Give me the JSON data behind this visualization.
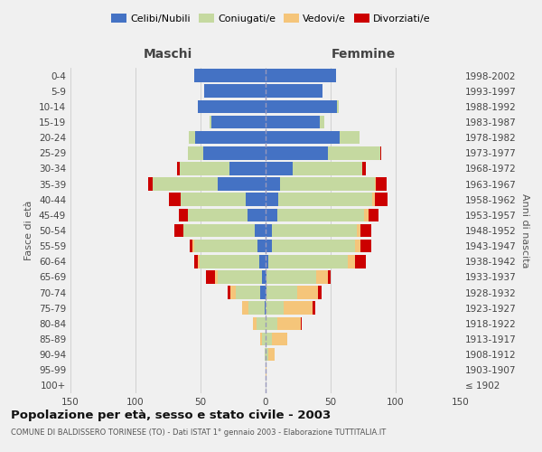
{
  "age_groups": [
    "100+",
    "95-99",
    "90-94",
    "85-89",
    "80-84",
    "75-79",
    "70-74",
    "65-69",
    "60-64",
    "55-59",
    "50-54",
    "45-49",
    "40-44",
    "35-39",
    "30-34",
    "25-29",
    "20-24",
    "15-19",
    "10-14",
    "5-9",
    "0-4"
  ],
  "birth_years": [
    "≤ 1902",
    "1903-1907",
    "1908-1912",
    "1913-1917",
    "1918-1922",
    "1923-1927",
    "1928-1932",
    "1933-1937",
    "1938-1942",
    "1943-1947",
    "1948-1952",
    "1953-1957",
    "1958-1962",
    "1963-1967",
    "1968-1972",
    "1973-1977",
    "1978-1982",
    "1983-1987",
    "1988-1992",
    "1993-1997",
    "1998-2002"
  ],
  "colors": {
    "celibe": "#4472c4",
    "coniugato": "#c5d9a0",
    "vedovo": "#f5c57a",
    "divorziato": "#cc0000"
  },
  "maschi": {
    "celibe": [
      0,
      0,
      0,
      0,
      0,
      1,
      4,
      3,
      5,
      6,
      8,
      14,
      15,
      37,
      28,
      48,
      54,
      42,
      52,
      47,
      55
    ],
    "coniugato": [
      0,
      0,
      1,
      3,
      7,
      12,
      19,
      34,
      46,
      49,
      55,
      46,
      50,
      50,
      38,
      12,
      5,
      1,
      0,
      0,
      0
    ],
    "vedovo": [
      0,
      0,
      0,
      1,
      3,
      5,
      4,
      2,
      1,
      1,
      0,
      0,
      0,
      0,
      0,
      0,
      0,
      0,
      0,
      0,
      0
    ],
    "divorziato": [
      0,
      0,
      0,
      0,
      0,
      0,
      2,
      7,
      3,
      2,
      7,
      7,
      9,
      3,
      2,
      0,
      0,
      0,
      0,
      0,
      0
    ]
  },
  "femmine": {
    "nubile": [
      0,
      0,
      0,
      0,
      0,
      0,
      1,
      1,
      2,
      5,
      5,
      9,
      10,
      11,
      21,
      48,
      57,
      42,
      55,
      44,
      54
    ],
    "coniugata": [
      0,
      0,
      2,
      5,
      9,
      14,
      23,
      38,
      61,
      64,
      65,
      67,
      72,
      73,
      53,
      40,
      15,
      3,
      1,
      0,
      0
    ],
    "vedova": [
      0,
      1,
      5,
      12,
      18,
      22,
      16,
      9,
      6,
      4,
      3,
      3,
      2,
      1,
      0,
      0,
      0,
      0,
      0,
      0,
      0
    ],
    "divorziata": [
      0,
      0,
      0,
      0,
      1,
      2,
      3,
      2,
      8,
      8,
      8,
      8,
      10,
      8,
      3,
      1,
      0,
      0,
      0,
      0,
      0
    ]
  },
  "xlim": 150,
  "title": "Popolazione per età, sesso e stato civile - 2003",
  "subtitle": "COMUNE DI BALDISSERO TORINESE (TO) - Dati ISTAT 1° gennaio 2003 - Elaborazione TUTTITALIA.IT",
  "xlabel_left": "Maschi",
  "xlabel_right": "Femmine",
  "ylabel_left": "Fasce di età",
  "ylabel_right": "Anni di nascita",
  "legend_labels": [
    "Celibi/Nubili",
    "Coniugati/e",
    "Vedovi/e",
    "Divorziati/e"
  ],
  "bg_color": "#f0f0f0",
  "bar_height": 0.85,
  "gridline_color": "#cccccc",
  "center_line_color": "#9999bb"
}
